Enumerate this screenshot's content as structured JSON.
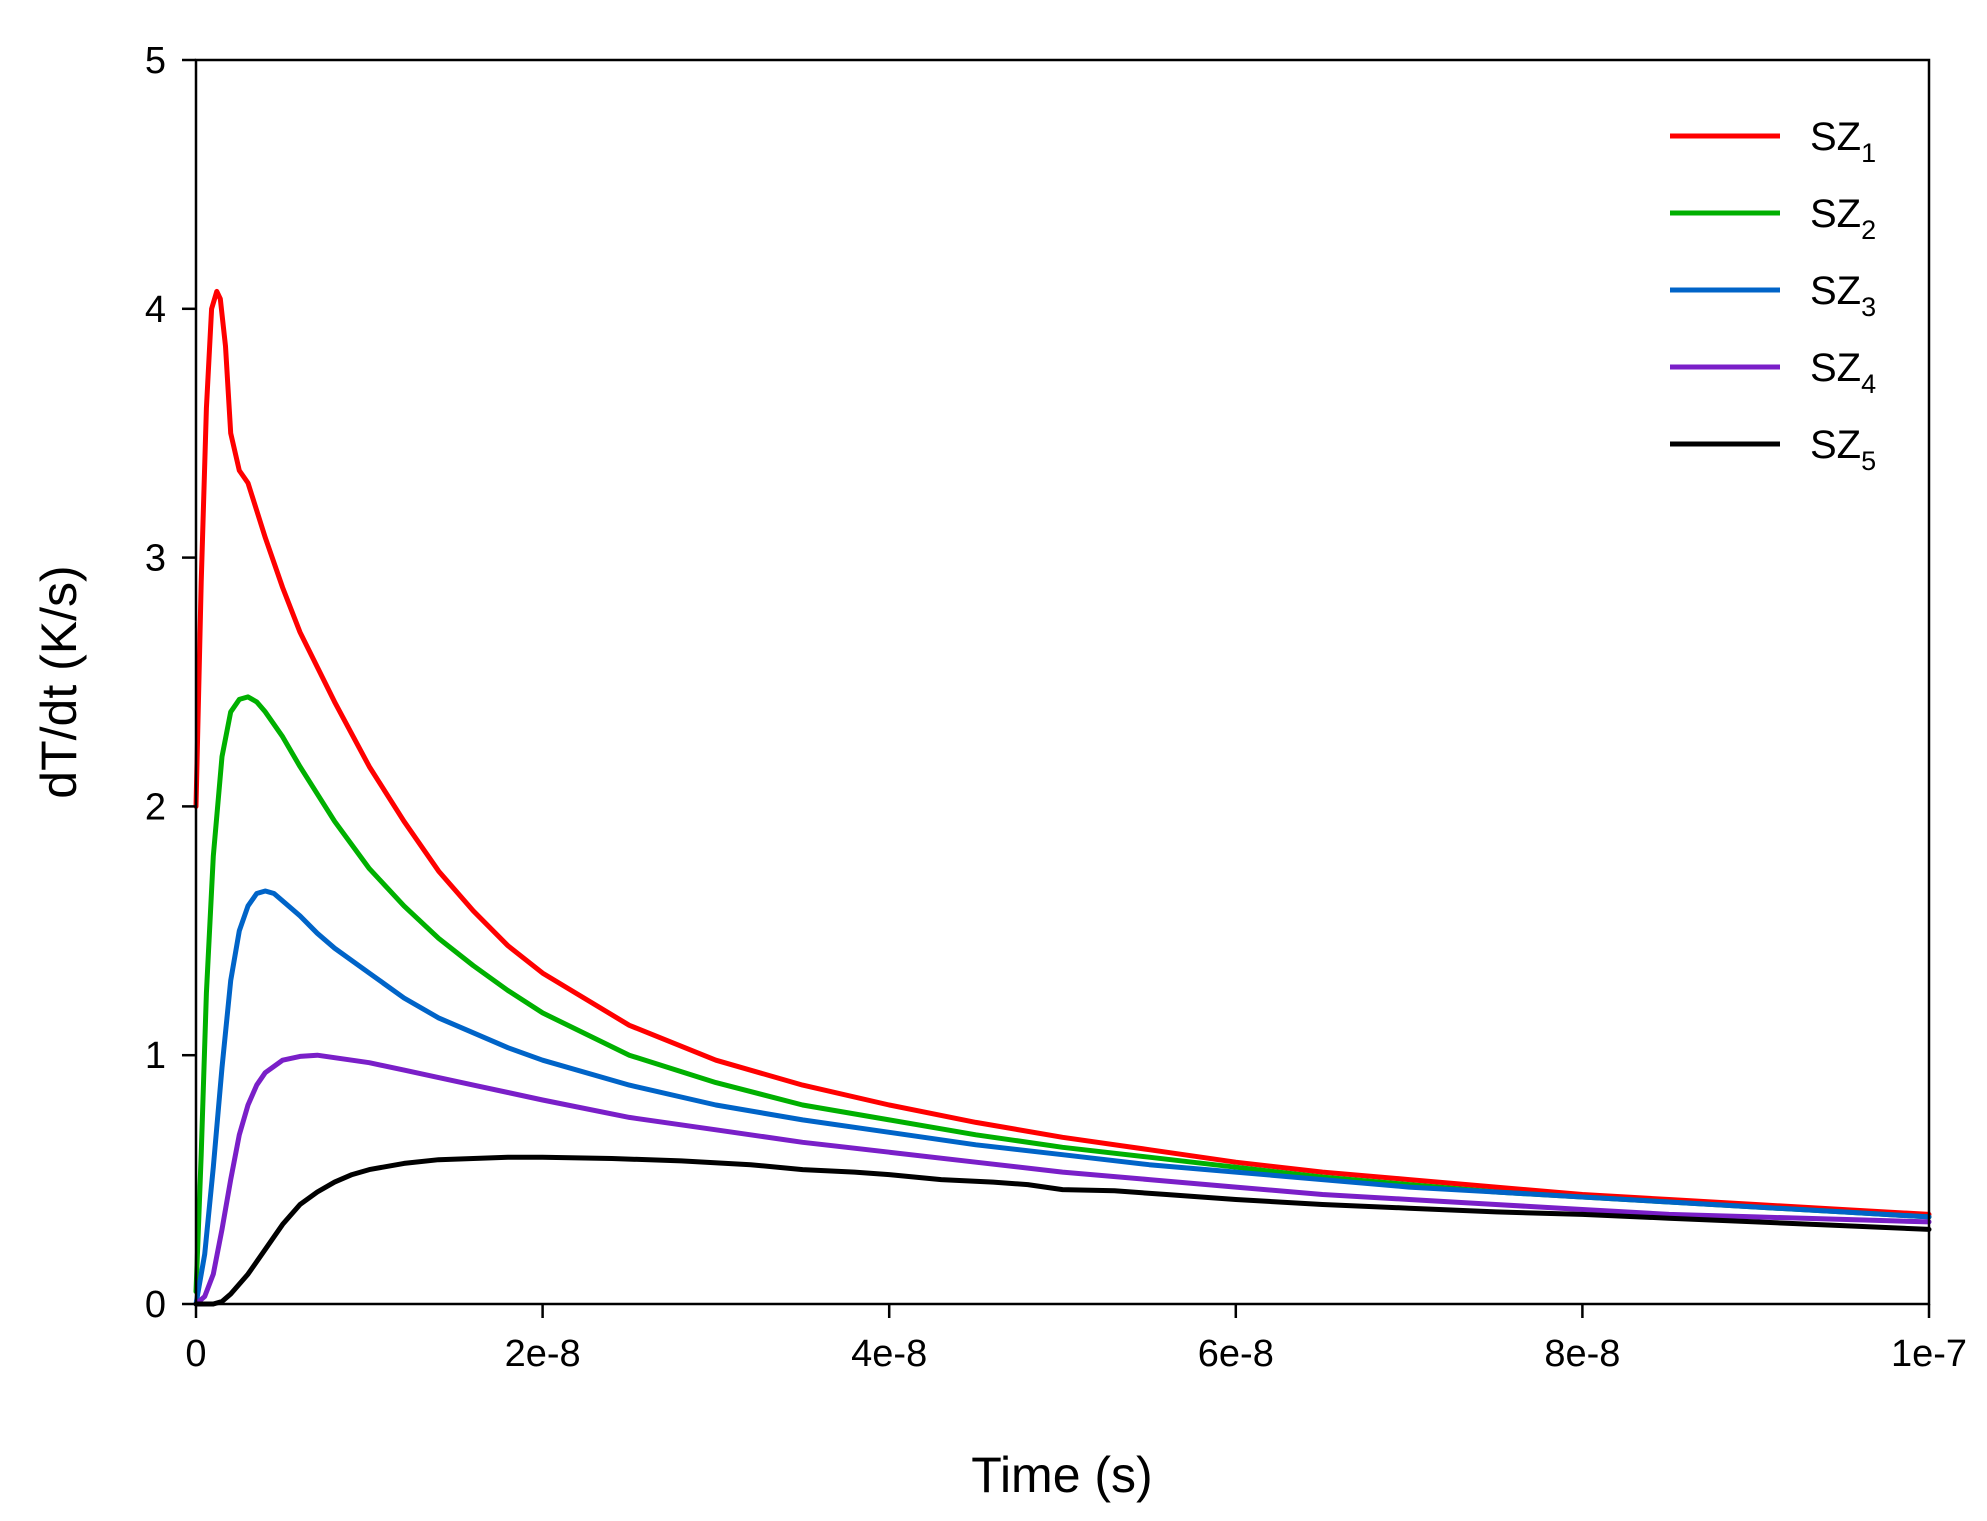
{
  "chart_data": {
    "type": "line",
    "title": "",
    "xlabel": "Time (s)",
    "ylabel": "dT/dt (K/s)",
    "xlim": [
      0,
      1e-07
    ],
    "ylim": [
      0,
      5
    ],
    "xticks": [
      {
        "value": 0,
        "label": "0"
      },
      {
        "value": 2e-08,
        "label": "2e-8"
      },
      {
        "value": 4e-08,
        "label": "4e-8"
      },
      {
        "value": 6e-08,
        "label": "6e-8"
      },
      {
        "value": 8e-08,
        "label": "8e-8"
      },
      {
        "value": 1e-07,
        "label": "1e-7"
      }
    ],
    "yticks": [
      {
        "value": 0,
        "label": "0"
      },
      {
        "value": 1,
        "label": "1"
      },
      {
        "value": 2,
        "label": "2"
      },
      {
        "value": 3,
        "label": "3"
      },
      {
        "value": 4,
        "label": "4"
      },
      {
        "value": 5,
        "label": "5"
      }
    ],
    "grid": false,
    "legend_position": "top-right",
    "series": [
      {
        "name": "SZ1",
        "base": "SZ",
        "subscript": "1",
        "color": "#ff0000",
        "x": [
          0,
          3e-10,
          6e-10,
          9e-10,
          1.2e-09,
          1.4e-09,
          1.7e-09,
          2e-09,
          2.5e-09,
          3e-09,
          4e-09,
          5e-09,
          6e-09,
          8e-09,
          1e-08,
          1.2e-08,
          1.4e-08,
          1.6e-08,
          1.8e-08,
          2e-08,
          2.5e-08,
          3e-08,
          3.5e-08,
          4e-08,
          4.5e-08,
          5e-08,
          5.5e-08,
          6e-08,
          6.5e-08,
          7e-08,
          7.5e-08,
          8e-08,
          8.5e-08,
          9e-08,
          9.5e-08,
          1e-07
        ],
        "y": [
          2.0,
          2.9,
          3.6,
          4.0,
          4.07,
          4.04,
          3.85,
          3.5,
          3.35,
          3.3,
          3.08,
          2.88,
          2.7,
          2.42,
          2.16,
          1.94,
          1.74,
          1.58,
          1.44,
          1.33,
          1.12,
          0.98,
          0.88,
          0.8,
          0.73,
          0.67,
          0.62,
          0.57,
          0.53,
          0.5,
          0.47,
          0.44,
          0.42,
          0.4,
          0.38,
          0.36
        ]
      },
      {
        "name": "SZ2",
        "base": "SZ",
        "subscript": "2",
        "color": "#00b000",
        "x": [
          0,
          3e-10,
          6e-10,
          1e-09,
          1.5e-09,
          2e-09,
          2.5e-09,
          3e-09,
          3.5e-09,
          4e-09,
          5e-09,
          6e-09,
          8e-09,
          1e-08,
          1.2e-08,
          1.4e-08,
          1.6e-08,
          1.8e-08,
          2e-08,
          2.5e-08,
          3e-08,
          3.5e-08,
          4e-08,
          4.5e-08,
          5e-08,
          5.5e-08,
          6e-08,
          6.5e-08,
          7e-08,
          7.5e-08,
          8e-08,
          8.5e-08,
          9e-08,
          9.5e-08,
          1e-07
        ],
        "y": [
          0.05,
          0.6,
          1.25,
          1.8,
          2.2,
          2.38,
          2.43,
          2.44,
          2.42,
          2.38,
          2.28,
          2.16,
          1.94,
          1.75,
          1.6,
          1.47,
          1.36,
          1.26,
          1.17,
          1.0,
          0.89,
          0.8,
          0.74,
          0.68,
          0.63,
          0.59,
          0.55,
          0.51,
          0.48,
          0.45,
          0.43,
          0.41,
          0.39,
          0.37,
          0.35
        ]
      },
      {
        "name": "SZ3",
        "base": "SZ",
        "subscript": "3",
        "color": "#0064c8",
        "x": [
          0,
          5e-10,
          1e-09,
          1.5e-09,
          2e-09,
          2.5e-09,
          3e-09,
          3.5e-09,
          4e-09,
          4.5e-09,
          5e-09,
          6e-09,
          7e-09,
          8e-09,
          1e-08,
          1.2e-08,
          1.4e-08,
          1.6e-08,
          1.8e-08,
          2e-08,
          2.5e-08,
          3e-08,
          3.5e-08,
          4e-08,
          4.5e-08,
          5e-08,
          5.5e-08,
          6e-08,
          6.5e-08,
          7e-08,
          7.5e-08,
          8e-08,
          8.5e-08,
          9e-08,
          9.5e-08,
          1e-07
        ],
        "y": [
          0.0,
          0.2,
          0.55,
          0.95,
          1.3,
          1.5,
          1.6,
          1.65,
          1.66,
          1.65,
          1.62,
          1.56,
          1.49,
          1.43,
          1.33,
          1.23,
          1.15,
          1.09,
          1.03,
          0.98,
          0.88,
          0.8,
          0.74,
          0.69,
          0.64,
          0.6,
          0.56,
          0.53,
          0.5,
          0.47,
          0.45,
          0.43,
          0.41,
          0.39,
          0.37,
          0.35
        ]
      },
      {
        "name": "SZ4",
        "base": "SZ",
        "subscript": "4",
        "color": "#7a1fc8",
        "x": [
          0,
          5e-10,
          1e-09,
          1.5e-09,
          2e-09,
          2.5e-09,
          3e-09,
          3.5e-09,
          4e-09,
          5e-09,
          6e-09,
          7e-09,
          8e-09,
          9e-09,
          1e-08,
          1.2e-08,
          1.4e-08,
          1.6e-08,
          1.8e-08,
          2e-08,
          2.5e-08,
          3e-08,
          3.5e-08,
          4e-08,
          4.5e-08,
          5e-08,
          5.5e-08,
          6e-08,
          6.5e-08,
          7e-08,
          7.5e-08,
          8e-08,
          8.5e-08,
          9e-08,
          9.5e-08,
          1e-07
        ],
        "y": [
          0.0,
          0.03,
          0.12,
          0.3,
          0.5,
          0.68,
          0.8,
          0.88,
          0.93,
          0.98,
          0.995,
          1.0,
          0.99,
          0.98,
          0.97,
          0.94,
          0.91,
          0.88,
          0.85,
          0.82,
          0.75,
          0.7,
          0.65,
          0.61,
          0.57,
          0.53,
          0.5,
          0.47,
          0.44,
          0.42,
          0.4,
          0.38,
          0.36,
          0.35,
          0.34,
          0.33
        ]
      },
      {
        "name": "SZ5",
        "base": "SZ",
        "subscript": "5",
        "color": "#000000",
        "x": [
          0,
          1e-09,
          1.5e-09,
          2e-09,
          3e-09,
          4e-09,
          5e-09,
          6e-09,
          7e-09,
          8e-09,
          9e-09,
          1e-08,
          1.2e-08,
          1.4e-08,
          1.6e-08,
          1.8e-08,
          2e-08,
          2.4e-08,
          2.8e-08,
          3.2e-08,
          3.5e-08,
          3.8e-08,
          4e-08,
          4.3e-08,
          4.6e-08,
          4.8e-08,
          5e-08,
          5.3e-08,
          5.6e-08,
          6e-08,
          6.5e-08,
          7e-08,
          7.5e-08,
          8e-08,
          8.5e-08,
          9e-08,
          9.5e-08,
          1e-07
        ],
        "y": [
          0.0,
          0.0,
          0.01,
          0.04,
          0.12,
          0.22,
          0.32,
          0.4,
          0.45,
          0.49,
          0.52,
          0.54,
          0.565,
          0.58,
          0.585,
          0.59,
          0.59,
          0.585,
          0.575,
          0.56,
          0.54,
          0.53,
          0.52,
          0.5,
          0.49,
          0.48,
          0.46,
          0.455,
          0.44,
          0.42,
          0.4,
          0.385,
          0.37,
          0.36,
          0.345,
          0.33,
          0.315,
          0.3
        ]
      }
    ]
  }
}
